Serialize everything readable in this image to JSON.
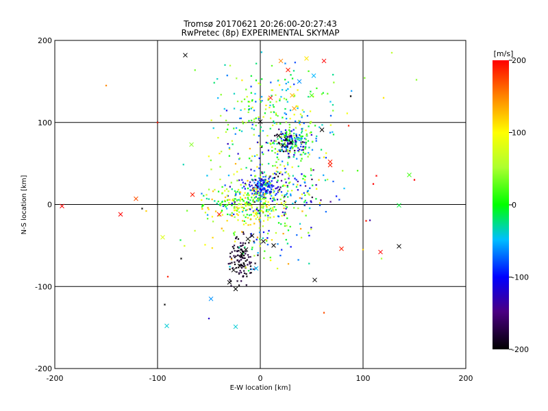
{
  "chart_data": {
    "type": "scatter",
    "title": "Tromsø 20170621 20:26:00-20:27:43",
    "subtitle": "RwPretec (8p) EXPERIMENTAL SKYMAP",
    "xlabel": "E-W location [km]",
    "ylabel": "N-S location [km]",
    "xlim": [
      -200,
      200
    ],
    "ylim": [
      -200,
      200
    ],
    "xticks": [
      "-200",
      "-100",
      "0",
      "100",
      "200"
    ],
    "yticks": [
      "-200",
      "-100",
      "0",
      "100",
      "200"
    ],
    "grid": true,
    "colorbar": {
      "label": "[m/s]",
      "range": [
        -200,
        200
      ],
      "ticks": [
        "200",
        "100",
        "0",
        "-100",
        "-200"
      ]
    },
    "crosses": [
      {
        "x": -73,
        "y": 182,
        "v": -200
      },
      {
        "x": 27,
        "y": 164,
        "v": 190
      },
      {
        "x": 45,
        "y": 178,
        "v": 110
      },
      {
        "x": 62,
        "y": 175,
        "v": 200
      },
      {
        "x": 20,
        "y": 175,
        "v": 150
      },
      {
        "x": 38,
        "y": 150,
        "v": -60
      },
      {
        "x": 52,
        "y": 157,
        "v": -50
      },
      {
        "x": 10,
        "y": 130,
        "v": 190
      },
      {
        "x": 31,
        "y": 133,
        "v": 130
      },
      {
        "x": 50,
        "y": 133,
        "v": 20
      },
      {
        "x": 33,
        "y": 117,
        "v": 140
      },
      {
        "x": 60,
        "y": 91,
        "v": -200
      },
      {
        "x": 68,
        "y": 52,
        "v": 190
      },
      {
        "x": 68,
        "y": 48,
        "v": 190
      },
      {
        "x": 0,
        "y": 101,
        "v": -200
      },
      {
        "x": -67,
        "y": 73,
        "v": 40
      },
      {
        "x": -66,
        "y": 12,
        "v": 190
      },
      {
        "x": -121,
        "y": 7,
        "v": 170
      },
      {
        "x": -136,
        "y": -12,
        "v": 200
      },
      {
        "x": -193,
        "y": -2,
        "v": 200
      },
      {
        "x": -40,
        "y": -12,
        "v": 190
      },
      {
        "x": -95,
        "y": -40,
        "v": 80
      },
      {
        "x": 145,
        "y": 36,
        "v": 20
      },
      {
        "x": 135,
        "y": -1,
        "v": -10
      },
      {
        "x": 135,
        "y": -51,
        "v": -200
      },
      {
        "x": 117,
        "y": -58,
        "v": 200
      },
      {
        "x": 79,
        "y": -54,
        "v": 190
      },
      {
        "x": 53,
        "y": -92,
        "v": -200
      },
      {
        "x": 13,
        "y": -50,
        "v": -200
      },
      {
        "x": 3,
        "y": -45,
        "v": -200
      },
      {
        "x": -4,
        "y": -78,
        "v": -50
      },
      {
        "x": -30,
        "y": -95,
        "v": -200
      },
      {
        "x": -24,
        "y": -103,
        "v": -200
      },
      {
        "x": -48,
        "y": -115,
        "v": -60
      },
      {
        "x": -24,
        "y": -149,
        "v": -40
      },
      {
        "x": -91,
        "y": -148,
        "v": -40
      },
      {
        "x": 25,
        "y": 80,
        "v": -200
      },
      {
        "x": 18,
        "y": 84,
        "v": -200
      },
      {
        "x": 30,
        "y": 76,
        "v": -200
      },
      {
        "x": 22,
        "y": 72,
        "v": -200
      },
      {
        "x": -18,
        "y": -60,
        "v": -200
      },
      {
        "x": -14,
        "y": -55,
        "v": -200
      },
      {
        "x": -20,
        "y": -75,
        "v": -200
      },
      {
        "x": -26,
        "y": -80,
        "v": -200
      },
      {
        "x": -12,
        "y": -42,
        "v": -200
      },
      {
        "x": -8,
        "y": -38,
        "v": -200
      }
    ],
    "clusters": [
      {
        "cx": 30,
        "cy": 75,
        "sx": 14,
        "sy": 12,
        "n": 190,
        "vmin": -200,
        "vmax": 60
      },
      {
        "cx": 3,
        "cy": 20,
        "sx": 9,
        "sy": 8,
        "n": 120,
        "vmin": -140,
        "vmax": -50
      },
      {
        "cx": 20,
        "cy": 20,
        "sx": 30,
        "sy": 20,
        "n": 140,
        "vmin": -200,
        "vmax": 80
      },
      {
        "cx": -15,
        "cy": 0,
        "sx": 28,
        "sy": 14,
        "n": 200,
        "vmin": -30,
        "vmax": 130
      },
      {
        "cx": -18,
        "cy": -65,
        "sx": 8,
        "sy": 20,
        "n": 110,
        "vmin": -200,
        "vmax": -170
      },
      {
        "cx": 15,
        "cy": 110,
        "sx": 45,
        "sy": 45,
        "n": 230,
        "vmin": -90,
        "vmax": 110
      },
      {
        "cx": 10,
        "cy": 20,
        "sx": 50,
        "sy": 55,
        "n": 180,
        "vmin": -150,
        "vmax": 150
      },
      {
        "cx": 5,
        "cy": -30,
        "sx": 40,
        "sy": 40,
        "n": 90,
        "vmin": -120,
        "vmax": 150
      }
    ],
    "outliers": [
      {
        "x": -150,
        "y": 145,
        "v": 150
      },
      {
        "x": -100,
        "y": 100,
        "v": 190
      },
      {
        "x": -93,
        "y": -122,
        "v": -200
      },
      {
        "x": -50,
        "y": -139,
        "v": -120
      },
      {
        "x": 62,
        "y": -132,
        "v": 170
      },
      {
        "x": 120,
        "y": 130,
        "v": 110
      },
      {
        "x": 113,
        "y": 35,
        "v": 200
      },
      {
        "x": 110,
        "y": 25,
        "v": 200
      },
      {
        "x": 150,
        "y": 30,
        "v": 200
      },
      {
        "x": 103,
        "y": -20,
        "v": 190
      },
      {
        "x": 86,
        "y": 96,
        "v": 190
      },
      {
        "x": 118,
        "y": -66,
        "v": 50
      },
      {
        "x": 128,
        "y": 185,
        "v": 60
      },
      {
        "x": -90,
        "y": -88,
        "v": 190
      },
      {
        "x": -115,
        "y": -5,
        "v": -200
      },
      {
        "x": -111,
        "y": -8,
        "v": 120
      },
      {
        "x": -77,
        "y": -66,
        "v": -200
      },
      {
        "x": 100,
        "y": -55,
        "v": 120
      },
      {
        "x": 152,
        "y": 152,
        "v": 40
      },
      {
        "x": 88,
        "y": 132,
        "v": -200
      }
    ]
  }
}
